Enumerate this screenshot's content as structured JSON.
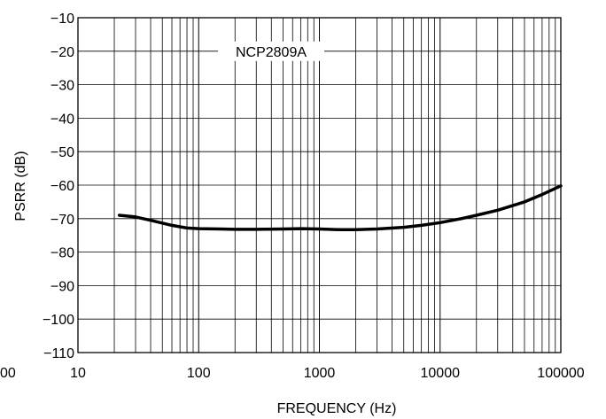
{
  "chart_data": {
    "type": "line",
    "xlabel": "FREQUENCY (Hz)",
    "ylabel": "PSRR (dB)",
    "x_scale": "log",
    "xlim": [
      10,
      100000
    ],
    "ylim": [
      -110,
      -10
    ],
    "x_ticks": [
      "10",
      "100",
      "1000",
      "10000",
      "100000"
    ],
    "x_tick_left_cut": "00",
    "y_ticks": [
      "−10",
      "−20",
      "−30",
      "−40",
      "−50",
      "−60",
      "−70",
      "−80",
      "−90",
      "−100",
      "−110"
    ],
    "y_tick_values": [
      -10,
      -20,
      -30,
      -40,
      -50,
      -60,
      -70,
      -80,
      -90,
      -100,
      -110
    ],
    "grid": true,
    "annotation": "NCP2809A",
    "series": [
      {
        "name": "NCP2809A",
        "color": "#000000",
        "x": [
          22,
          30,
          40,
          60,
          80,
          100,
          150,
          200,
          300,
          500,
          700,
          1000,
          1500,
          2000,
          3000,
          5000,
          7000,
          10000,
          15000,
          20000,
          30000,
          50000,
          70000,
          100000
        ],
        "y": [
          -69,
          -69.5,
          -70.5,
          -72,
          -72.8,
          -73,
          -73.1,
          -73.2,
          -73.2,
          -73.1,
          -73,
          -73.1,
          -73.3,
          -73.3,
          -73.1,
          -72.6,
          -72,
          -71.2,
          -70,
          -69,
          -67.5,
          -65,
          -62.8,
          -60.2
        ]
      }
    ]
  }
}
